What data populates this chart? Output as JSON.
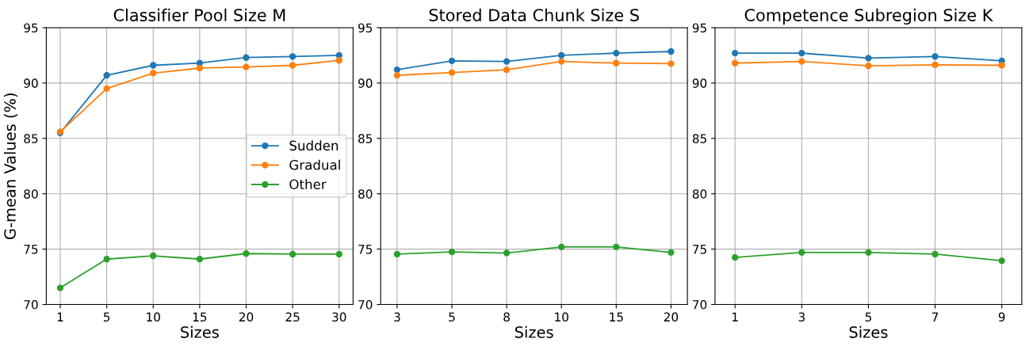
{
  "chart_data": [
    {
      "type": "line",
      "title": "Classifier Pool Size M",
      "xlabel": "Sizes",
      "ylabel": "G-mean Values (%)",
      "categories": [
        "1",
        "5",
        "10",
        "15",
        "20",
        "25",
        "30"
      ],
      "ylim": [
        70,
        95
      ],
      "yticks": [
        70,
        75,
        80,
        85,
        90,
        95
      ],
      "grid": true,
      "legend": "center right",
      "marker": "circle",
      "line_style": "solid",
      "series": [
        {
          "name": "Sudden",
          "color": "#1f77b4",
          "values": [
            85.5,
            90.7,
            91.6,
            91.8,
            92.3,
            92.4,
            92.5
          ]
        },
        {
          "name": "Gradual",
          "color": "#ff7f0e",
          "values": [
            85.6,
            89.5,
            90.9,
            91.35,
            91.45,
            91.6,
            92.05
          ]
        },
        {
          "name": "Other",
          "color": "#2ca02c",
          "values": [
            71.5,
            74.1,
            74.4,
            74.1,
            74.6,
            74.55,
            74.55
          ]
        }
      ]
    },
    {
      "type": "line",
      "title": "Stored Data Chunk Size S",
      "xlabel": "Sizes",
      "categories": [
        "3",
        "5",
        "8",
        "10",
        "15",
        "20"
      ],
      "ylim": [
        70,
        95
      ],
      "yticks": [
        70,
        75,
        80,
        85,
        90,
        95
      ],
      "grid": true,
      "marker": "circle",
      "line_style": "solid",
      "series": [
        {
          "color": "#1f77b4",
          "values": [
            91.2,
            92.0,
            91.95,
            92.5,
            92.7,
            92.85
          ]
        },
        {
          "color": "#ff7f0e",
          "values": [
            90.7,
            90.95,
            91.2,
            91.95,
            91.8,
            91.75
          ]
        },
        {
          "color": "#2ca02c",
          "values": [
            74.55,
            74.75,
            74.65,
            75.2,
            75.2,
            74.7
          ]
        }
      ]
    },
    {
      "type": "line",
      "title": "Competence Subregion Size K",
      "xlabel": "Sizes",
      "categories": [
        "1",
        "3",
        "5",
        "7",
        "9"
      ],
      "ylim": [
        70,
        95
      ],
      "yticks": [
        70,
        75,
        80,
        85,
        90,
        95
      ],
      "grid": true,
      "marker": "circle",
      "line_style": "solid",
      "series": [
        {
          "color": "#1f77b4",
          "values": [
            92.7,
            92.7,
            92.25,
            92.4,
            92.0
          ]
        },
        {
          "color": "#ff7f0e",
          "values": [
            91.8,
            91.95,
            91.55,
            91.65,
            91.6
          ]
        },
        {
          "color": "#2ca02c",
          "values": [
            74.25,
            74.7,
            74.7,
            74.55,
            73.95
          ]
        }
      ]
    }
  ]
}
